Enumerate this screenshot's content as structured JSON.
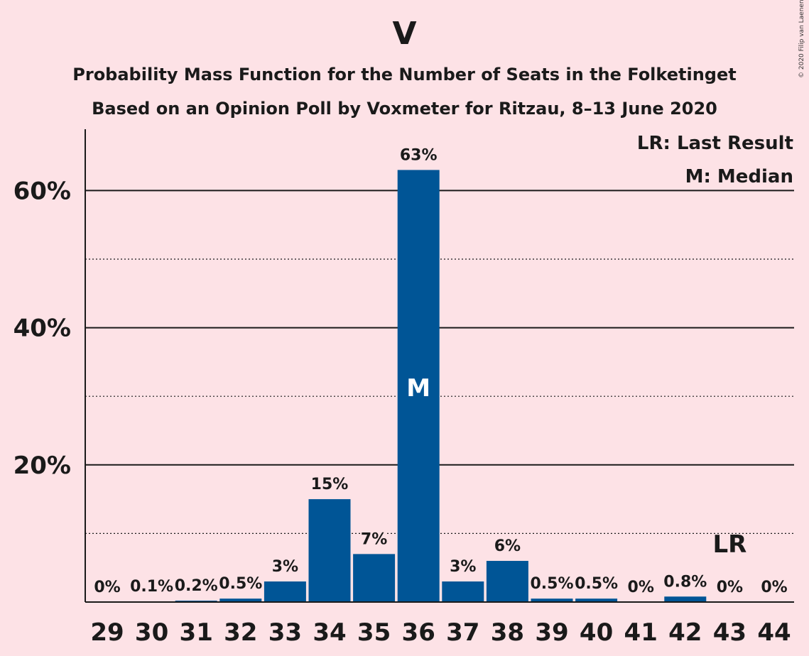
{
  "header": {
    "title": "V",
    "subtitle_line1": "Probability Mass Function for the Number of Seats in the Folketinget",
    "subtitle_line2": "Based on an Opinion Poll by Voxmeter for Ritzau, 8–13 June 2020",
    "copyright": "© 2020 Filip van Laenen"
  },
  "legend": {
    "last_result": "LR: Last Result",
    "median": "M: Median"
  },
  "colors": {
    "background": "#fde2e6",
    "bar": "#005596",
    "text": "#1a1a1a"
  },
  "chart_data": {
    "type": "bar",
    "categories": [
      "29",
      "30",
      "31",
      "32",
      "33",
      "34",
      "35",
      "36",
      "37",
      "38",
      "39",
      "40",
      "41",
      "42",
      "43",
      "44"
    ],
    "values": [
      0,
      0.1,
      0.2,
      0.5,
      3,
      15,
      7,
      63,
      3,
      6,
      0.5,
      0.5,
      0,
      0.8,
      0,
      0
    ],
    "data_labels": [
      "0%",
      "0.1%",
      "0.2%",
      "0.5%",
      "3%",
      "15%",
      "7%",
      "63%",
      "3%",
      "6%",
      "0.5%",
      "0.5%",
      "0%",
      "0.8%",
      "0%",
      "0%"
    ],
    "y_ticks": [
      {
        "value": 20,
        "label": "20%"
      },
      {
        "value": 40,
        "label": "40%"
      },
      {
        "value": 60,
        "label": "60%"
      }
    ],
    "minor_gridlines": [
      10,
      30,
      50
    ],
    "ylim": [
      0,
      69
    ],
    "median_seat": "36",
    "median_marker": "M",
    "last_result_seat": "43",
    "last_result_marker": "LR",
    "legend_position": "top-right"
  }
}
